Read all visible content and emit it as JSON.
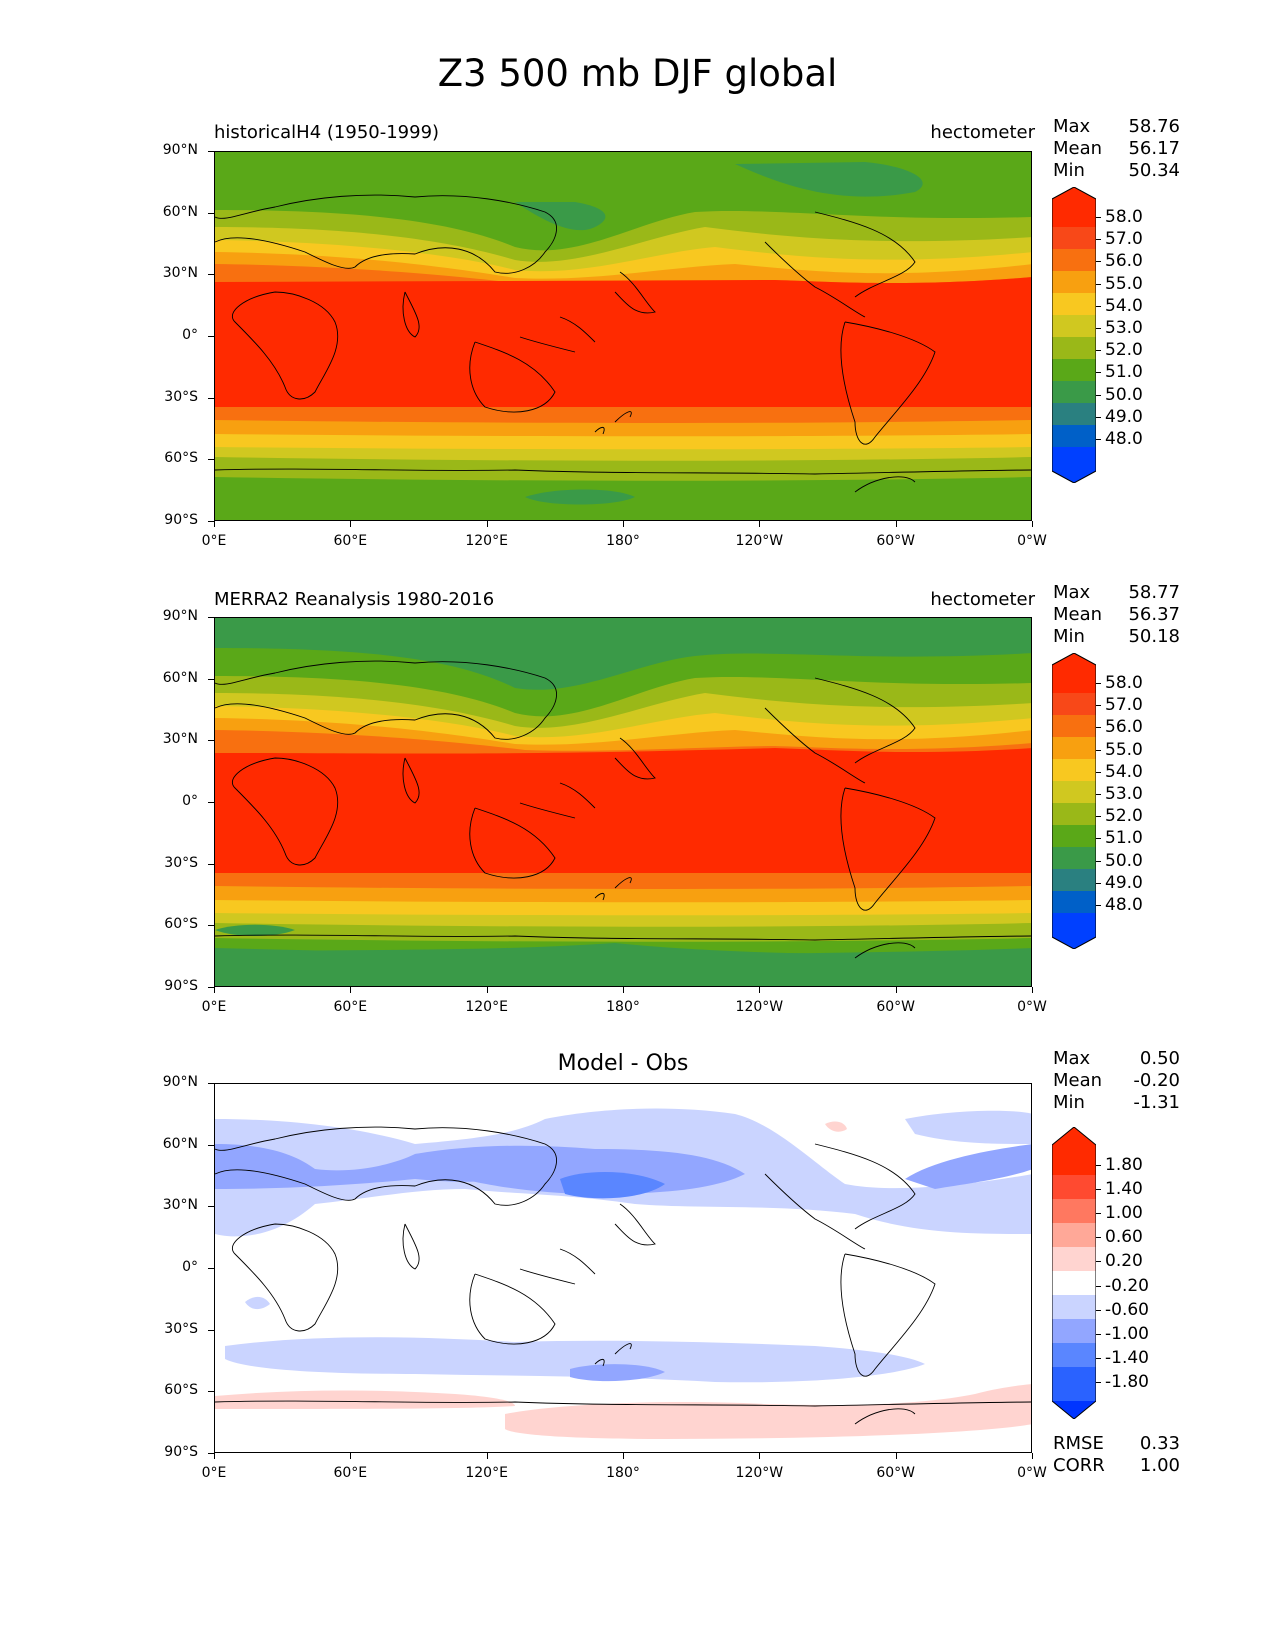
{
  "title": "Z3 500 mb DJF global",
  "lat_ticks": [
    "90°N",
    "60°N",
    "30°N",
    "0°",
    "30°S",
    "60°S",
    "90°S"
  ],
  "lon_ticks": [
    "0°E",
    "60°E",
    "120°E",
    "180°",
    "120°W",
    "60°W",
    "0°W"
  ],
  "panels": [
    {
      "title_left": "historicalH4 (1950-1999)",
      "units": "hectometer",
      "stats": {
        "max_label": "Max",
        "max": "58.76",
        "mean_label": "Mean",
        "mean": "56.17",
        "min_label": "Min",
        "min": "50.34"
      },
      "colorbar_labels": [
        "58.0",
        "57.0",
        "56.0",
        "55.0",
        "54.0",
        "53.0",
        "52.0",
        "51.0",
        "50.0",
        "49.0",
        "48.0"
      ]
    },
    {
      "title_left": "MERRA2 Reanalysis 1980-2016",
      "units": "hectometer",
      "stats": {
        "max_label": "Max",
        "max": "58.77",
        "mean_label": "Mean",
        "mean": "56.37",
        "min_label": "Min",
        "min": "50.18"
      },
      "colorbar_labels": [
        "58.0",
        "57.0",
        "56.0",
        "55.0",
        "54.0",
        "53.0",
        "52.0",
        "51.0",
        "50.0",
        "49.0",
        "48.0"
      ]
    },
    {
      "title_center": "Model - Obs",
      "stats": {
        "max_label": "Max",
        "max": "0.50",
        "mean_label": "Mean",
        "mean": "-0.20",
        "min_label": "Min",
        "min": "-1.31"
      },
      "colorbar_labels": [
        "1.80",
        "1.40",
        "1.00",
        "0.60",
        "0.20",
        "-0.20",
        "-0.60",
        "-1.00",
        "-1.40",
        "-1.80"
      ],
      "metrics": {
        "rmse_label": "RMSE",
        "rmse": "0.33",
        "corr_label": "CORR",
        "corr": "1.00"
      }
    }
  ],
  "colors": {
    "abs_scale": [
      "#0040ff",
      "#0060c8",
      "#2a8080",
      "#3a9a48",
      "#5aa818",
      "#9ab818",
      "#d0c820",
      "#f8c820",
      "#f8a010",
      "#f87010",
      "#f84818",
      "#ff2a00"
    ],
    "diff_scale": [
      "#0035ff",
      "#2a62ff",
      "#5a86ff",
      "#92a6ff",
      "#cad4ff",
      "#ffffff",
      "#ffd4d0",
      "#ffa898",
      "#ff7860",
      "#ff4a30",
      "#ff2a00"
    ]
  },
  "chart_data": [
    {
      "type": "heatmap",
      "title": "historicalH4 (1950-1999)",
      "units": "hectometer",
      "xlim": [
        0,
        360
      ],
      "ylim": [
        -90,
        90
      ],
      "levels": [
        48,
        49,
        50,
        51,
        52,
        53,
        54,
        55,
        56,
        57,
        58
      ],
      "zonal_profile": {
        "lat": [
          90,
          75,
          60,
          45,
          30,
          20,
          0,
          -20,
          -35,
          -45,
          -55,
          -65,
          -75,
          -90
        ],
        "value": [
          51.0,
          51.5,
          52.0,
          53.5,
          56.0,
          57.5,
          58.5,
          58.5,
          57.5,
          55.0,
          52.5,
          51.5,
          51.2,
          51.0
        ]
      },
      "max": 58.76,
      "mean": 56.17,
      "min": 50.34
    },
    {
      "type": "heatmap",
      "title": "MERRA2 Reanalysis 1980-2016",
      "units": "hectometer",
      "xlim": [
        0,
        360
      ],
      "ylim": [
        -90,
        90
      ],
      "levels": [
        48,
        49,
        50,
        51,
        52,
        53,
        54,
        55,
        56,
        57,
        58
      ],
      "zonal_profile": {
        "lat": [
          90,
          75,
          60,
          45,
          30,
          20,
          0,
          -20,
          -35,
          -45,
          -55,
          -65,
          -75,
          -90
        ],
        "value": [
          50.8,
          51.3,
          52.0,
          53.5,
          56.2,
          57.6,
          58.5,
          58.5,
          57.6,
          55.2,
          52.6,
          51.4,
          50.8,
          50.6
        ]
      },
      "max": 58.77,
      "mean": 56.37,
      "min": 50.18
    },
    {
      "type": "heatmap",
      "title": "Model - Obs",
      "xlim": [
        0,
        360
      ],
      "ylim": [
        -90,
        90
      ],
      "levels": [
        -1.8,
        -1.4,
        -1.0,
        -0.6,
        -0.2,
        0.2,
        0.6,
        1.0,
        1.4,
        1.8
      ],
      "max": 0.5,
      "mean": -0.2,
      "min": -1.31,
      "rmse": 0.33,
      "corr": 1.0
    }
  ]
}
